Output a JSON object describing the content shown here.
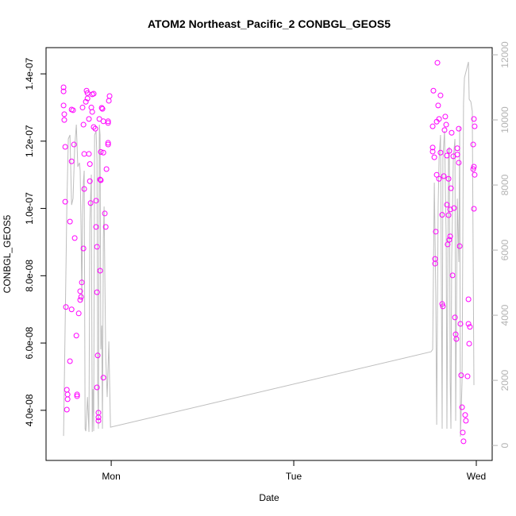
{
  "chart_data": {
    "type": "scatter",
    "title": "ATOM2 Northeast_Pacific_2 CONBGL_GEOS5",
    "x_label": "Date",
    "y_label": "CONBGL_GEOS5",
    "xlim": [
      -0.357,
      2.087
    ],
    "ylim": [
      2.51e-08,
      1.478e-07
    ],
    "y2lim": [
      -460,
      12220
    ],
    "xticks": [
      {
        "value": 0,
        "label": "Mon"
      },
      {
        "value": 1,
        "label": "Tue"
      },
      {
        "value": 2,
        "label": "Wed"
      }
    ],
    "yticks": [
      {
        "value": 4e-08,
        "label": "4.0e-08"
      },
      {
        "value": 6e-08,
        "label": "6.0e-08"
      },
      {
        "value": 8e-08,
        "label": "8.0e-08"
      },
      {
        "value": 1e-07,
        "label": "1.0e-07"
      },
      {
        "value": 1.2e-07,
        "label": "1.2e-07"
      },
      {
        "value": 1.4e-07,
        "label": "1.4e-07"
      }
    ],
    "y2ticks": [
      0,
      2000,
      4000,
      6000,
      8000,
      10000,
      12000
    ],
    "y2_color": "#b3b3b3",
    "series": [
      {
        "type": "line",
        "axis": "y2",
        "color": "#bebebe",
        "x": [
          -0.261,
          -0.243,
          -0.235,
          -0.226,
          -0.217,
          -0.209,
          -0.2,
          -0.191,
          -0.183,
          -0.174,
          -0.17,
          -0.165,
          -0.161,
          -0.157,
          -0.152,
          -0.148,
          -0.143,
          -0.139,
          -0.13,
          -0.122,
          -0.117,
          -0.109,
          -0.104,
          -0.1,
          -0.096,
          -0.091,
          -0.083,
          -0.078,
          -0.074,
          -0.07,
          -0.065,
          -0.061,
          -0.057,
          -0.052,
          -0.048,
          -0.043,
          -0.039,
          -0.03,
          -0.022,
          -0.013,
          -0.004,
          1.752,
          1.761,
          1.77,
          1.778,
          1.783,
          1.791,
          1.796,
          1.804,
          1.813,
          1.817,
          1.826,
          1.835,
          1.839,
          1.848,
          1.852,
          1.857,
          1.861,
          1.865,
          1.874,
          1.883,
          1.887,
          1.896,
          1.904,
          1.909,
          1.913,
          1.922,
          1.93,
          1.935,
          1.957,
          1.961,
          1.97,
          1.978,
          1.987
        ],
        "values": [
          293,
          7341,
          9415,
          9537,
          7390,
          7585,
          9171,
          9854,
          8561,
          8683,
          8439,
          6610,
          4415,
          7098,
          8122,
          8439,
          512,
          439,
          1488,
          415,
          6854,
          8317,
          415,
          1732,
          439,
          9537,
          9659,
          8805,
          1976,
          512,
          9854,
          9537,
          2951,
          3683,
          512,
          6366,
          7341,
          2707,
          1488,
          3195,
          561,
          2878,
          2951,
          8073,
          4659,
          634,
          7341,
          8805,
          9537,
          512,
          8805,
          9659,
          6366,
          512,
          9049,
          9171,
          1976,
          512,
          5634,
          8805,
          9415,
          756,
          7585,
          5634,
          9780,
          268,
          1976,
          10512,
          11293,
          11781,
          10634,
          10561,
          10268,
          1854
        ]
      },
      {
        "type": "scatter",
        "color": "#ff00ff",
        "x": [
          -0.261,
          -0.261,
          -0.261,
          -0.257,
          -0.257,
          -0.252,
          -0.252,
          -0.248,
          -0.243,
          -0.239,
          -0.239,
          -0.243,
          -0.226,
          -0.226,
          -0.217,
          -0.209,
          -0.217,
          -0.217,
          -0.204,
          -0.2,
          -0.191,
          -0.187,
          -0.187,
          -0.178,
          -0.17,
          -0.17,
          -0.165,
          -0.161,
          -0.152,
          -0.157,
          -0.152,
          -0.148,
          -0.148,
          -0.139,
          -0.135,
          -0.13,
          -0.13,
          -0.122,
          -0.122,
          -0.117,
          -0.117,
          -0.113,
          -0.109,
          -0.104,
          -0.096,
          -0.104,
          -0.096,
          -0.087,
          -0.083,
          -0.078,
          -0.083,
          -0.078,
          -0.078,
          -0.074,
          -0.07,
          -0.07,
          -0.07,
          -0.065,
          -0.061,
          -0.061,
          -0.057,
          -0.052,
          -0.048,
          -0.043,
          -0.035,
          -0.03,
          -0.026,
          -0.017,
          -0.017,
          -0.017,
          -0.013,
          -0.009,
          -0.017,
          -0.043,
          -0.043,
          -0.057,
          1.761,
          1.765,
          1.761,
          1.761,
          1.77,
          1.774,
          1.774,
          1.778,
          1.783,
          1.783,
          1.787,
          1.791,
          1.796,
          1.796,
          1.804,
          1.813,
          1.813,
          1.817,
          1.822,
          1.826,
          1.83,
          1.835,
          1.839,
          1.848,
          1.848,
          1.852,
          1.857,
          1.857,
          1.861,
          1.865,
          1.87,
          1.878,
          1.883,
          1.887,
          1.891,
          1.896,
          1.896,
          1.904,
          1.904,
          1.909,
          1.913,
          1.917,
          1.922,
          1.926,
          1.93,
          1.939,
          1.943,
          1.952,
          1.957,
          1.957,
          1.965,
          1.961,
          1.987,
          1.991,
          1.983,
          1.987,
          1.991,
          1.983,
          1.987,
          1.843,
          1.839,
          1.852,
          1.874,
          1.804
        ],
        "values": [
          1.36e-07,
          1.348e-07,
          1.306e-07,
          1.28e-07,
          1.263e-07,
          1.183e-07,
          1.02e-07,
          7.07e-08,
          4.61e-08,
          4.47e-08,
          4.33e-08,
          4.02e-08,
          5.46e-08,
          9.61e-08,
          1.294e-07,
          1.292e-07,
          1.14e-07,
          7e-08,
          1.19e-07,
          9.12e-08,
          6.22e-08,
          4.47e-08,
          4.42e-08,
          6.88e-08,
          7.28e-08,
          7.54e-08,
          7.37e-08,
          7.8e-08,
          8.81e-08,
          1.3e-07,
          1.249e-07,
          1.162e-07,
          1.058e-07,
          1.317e-07,
          1.35e-07,
          1.343e-07,
          1.327e-07,
          1.162e-07,
          1.266e-07,
          1.132e-07,
          1.081e-07,
          1.016e-07,
          1.3e-07,
          1.339e-07,
          1.341e-07,
          1.287e-07,
          1.242e-07,
          1.237e-07,
          9.45e-08,
          8.86e-08,
          1.023e-07,
          7.51e-08,
          4.68e-08,
          5.63e-08,
          3.93e-08,
          3.69e-08,
          3.79e-08,
          1.266e-07,
          8.15e-08,
          1.086e-07,
          1.168e-07,
          1.299e-07,
          1.296e-07,
          1.166e-07,
          9.85e-08,
          9.45e-08,
          1.117e-07,
          1.195e-07,
          1.19e-07,
          1.254e-07,
          1.32e-07,
          1.334e-07,
          1.259e-07,
          1.259e-07,
          4.97e-08,
          1.084e-07,
          1.244e-07,
          1.35e-07,
          1.181e-07,
          1.169e-07,
          1.152e-07,
          8.5e-08,
          8.36e-08,
          9.31e-08,
          1.1e-07,
          1.258e-07,
          1.433e-07,
          1.306e-07,
          1.266e-07,
          1.088e-07,
          1.166e-07,
          9.81e-08,
          7.16e-08,
          7.09e-08,
          1.096e-07,
          1.233e-07,
          1.273e-07,
          1.249e-07,
          1.157e-07,
          1.088e-07,
          9.8e-08,
          1.171e-07,
          9.17e-08,
          9.97e-08,
          1.06e-07,
          1.225e-07,
          8.01e-08,
          1.001e-07,
          6.76e-08,
          6.26e-08,
          6.12e-08,
          1.179e-07,
          1.16e-07,
          1.237e-07,
          1.136e-07,
          8.88e-08,
          6.57e-08,
          5.04e-08,
          4.09e-08,
          3.34e-08,
          3.08e-08,
          3.86e-08,
          3.69e-08,
          5.01e-08,
          7.3e-08,
          6.57e-08,
          6.48e-08,
          5.98e-08,
          1.266e-07,
          1.244e-07,
          1.19e-07,
          1.124e-07,
          1.1e-07,
          1.117e-07,
          9.99e-08,
          8.93e-08,
          1.011e-07,
          9.07e-08,
          1.155e-07,
          1.336e-07
        ]
      }
    ]
  }
}
